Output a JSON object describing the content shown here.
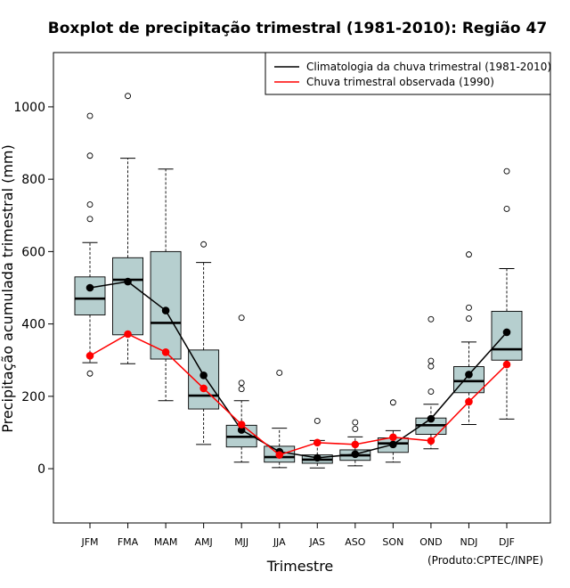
{
  "chart_data": {
    "type": "boxplot",
    "title": "Boxplot de precipitação trimestral (1981-2010): Região 47",
    "xlabel": "Trimestre",
    "ylabel": "Precipitação acumulada trimestral (mm)",
    "credit": "(Produto:CPTEC/INPE)",
    "ylim": [
      -150,
      1150
    ],
    "yticks": [
      0,
      200,
      400,
      600,
      800,
      1000
    ],
    "categories": [
      "JFM",
      "FMA",
      "MAM",
      "AMJ",
      "MJJ",
      "JJA",
      "JAS",
      "ASO",
      "SON",
      "OND",
      "NDJ",
      "DJF"
    ],
    "boxes": [
      {
        "q1": 425,
        "median": 470,
        "q3": 530,
        "whisker_low": 293,
        "whisker_high": 625,
        "outliers": [
          263,
          690,
          730,
          865,
          975
        ]
      },
      {
        "q1": 370,
        "median": 522,
        "q3": 583,
        "whisker_low": 290,
        "whisker_high": 858,
        "outliers": [
          1030
        ]
      },
      {
        "q1": 303,
        "median": 403,
        "q3": 600,
        "whisker_low": 188,
        "whisker_high": 828,
        "outliers": []
      },
      {
        "q1": 165,
        "median": 202,
        "q3": 328,
        "whisker_low": 67,
        "whisker_high": 570,
        "outliers": [
          620
        ]
      },
      {
        "q1": 60,
        "median": 88,
        "q3": 120,
        "whisker_low": 18,
        "whisker_high": 188,
        "outliers": [
          220,
          237,
          417
        ]
      },
      {
        "q1": 18,
        "median": 32,
        "q3": 62,
        "whisker_low": 3,
        "whisker_high": 112,
        "outliers": [
          265
        ]
      },
      {
        "q1": 15,
        "median": 25,
        "q3": 38,
        "whisker_low": 2,
        "whisker_high": 78,
        "outliers": [
          132
        ]
      },
      {
        "q1": 23,
        "median": 37,
        "q3": 52,
        "whisker_low": 8,
        "whisker_high": 88,
        "outliers": [
          110,
          128
        ]
      },
      {
        "q1": 45,
        "median": 70,
        "q3": 85,
        "whisker_low": 18,
        "whisker_high": 105,
        "outliers": [
          183
        ]
      },
      {
        "q1": 95,
        "median": 120,
        "q3": 140,
        "whisker_low": 55,
        "whisker_high": 178,
        "outliers": [
          213,
          283,
          298,
          413
        ]
      },
      {
        "q1": 210,
        "median": 242,
        "q3": 282,
        "whisker_low": 122,
        "whisker_high": 350,
        "outliers": [
          415,
          445,
          592
        ]
      },
      {
        "q1": 300,
        "median": 330,
        "q3": 435,
        "whisker_low": 137,
        "whisker_high": 553,
        "outliers": [
          718,
          822
        ]
      }
    ],
    "series": [
      {
        "name": "Climatologia da chuva trimestral (1981-2010)",
        "color": "#000000",
        "values": [
          500,
          517,
          437,
          258,
          107,
          47,
          30,
          40,
          67,
          138,
          260,
          377
        ]
      },
      {
        "name": "Chuva trimestral observada (1990)",
        "color": "#ff0000",
        "values": [
          312,
          372,
          322,
          222,
          122,
          38,
          72,
          67,
          87,
          77,
          185,
          288
        ]
      }
    ],
    "box_fill": "#b6cfcf",
    "legend_position": "top-right"
  }
}
